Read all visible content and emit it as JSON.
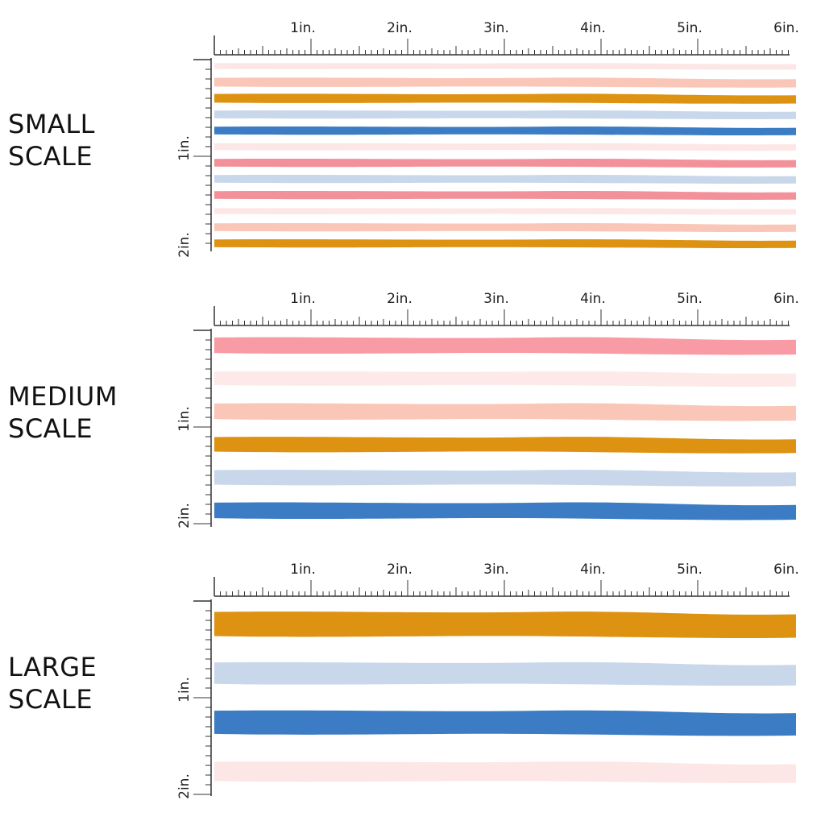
{
  "panels": [
    {
      "id": "small",
      "label_lines": [
        "SMALL",
        "SCALE"
      ],
      "h_ruler_labels": [
        "1in.",
        "2in.",
        "3in.",
        "4in.",
        "5in.",
        "6in."
      ],
      "v_ruler_labels": [
        "1in.",
        "2in."
      ],
      "stripes": [
        {
          "color": "#fde7e6",
          "height_in": 0.06
        },
        {
          "color": "#f9c6b8",
          "height_in": 0.09
        },
        {
          "color": "#dd9212",
          "height_in": 0.09
        },
        {
          "color": "#c9d7eb",
          "height_in": 0.08
        },
        {
          "color": "#3b7cc4",
          "height_in": 0.08
        },
        {
          "color": "#fde7e6",
          "height_in": 0.07
        },
        {
          "color": "#f3919b",
          "height_in": 0.08
        },
        {
          "color": "#c9d7eb",
          "height_in": 0.08
        },
        {
          "color": "#f3919b",
          "height_in": 0.08
        },
        {
          "color": "#fde7e6",
          "height_in": 0.06
        },
        {
          "color": "#f9c6b8",
          "height_in": 0.08
        },
        {
          "color": "#dd9212",
          "height_in": 0.08
        }
      ]
    },
    {
      "id": "medium",
      "label_lines": [
        "MEDIUM",
        "SCALE"
      ],
      "h_ruler_labels": [
        "1in.",
        "2in.",
        "3in.",
        "4in.",
        "5in.",
        "6in."
      ],
      "v_ruler_labels": [
        "1in.",
        "2in."
      ],
      "stripes": [
        {
          "color": "#f89ba4",
          "height_in": 0.16
        },
        {
          "color": "#fde9e8",
          "height_in": 0.14
        },
        {
          "color": "#f9c6b8",
          "height_in": 0.16
        },
        {
          "color": "#dd9212",
          "height_in": 0.15
        },
        {
          "color": "#c9d7eb",
          "height_in": 0.15
        },
        {
          "color": "#3b7cc4",
          "height_in": 0.16
        }
      ]
    },
    {
      "id": "large",
      "label_lines": [
        "LARGE",
        "SCALE"
      ],
      "h_ruler_labels": [
        "1in.",
        "2in.",
        "3in.",
        "4in.",
        "5in.",
        "6in."
      ],
      "v_ruler_labels": [
        "1in.",
        "2in."
      ],
      "stripes": [
        {
          "color": "#dd9212",
          "height_in": 0.25
        },
        {
          "color": "#c9d7eb",
          "height_in": 0.22
        },
        {
          "color": "#3b7cc4",
          "height_in": 0.24
        },
        {
          "color": "#fde7e6",
          "height_in": 0.2
        }
      ]
    }
  ],
  "colors": {
    "ruler": "#333333",
    "ruler_accent": "#c98a5a"
  }
}
